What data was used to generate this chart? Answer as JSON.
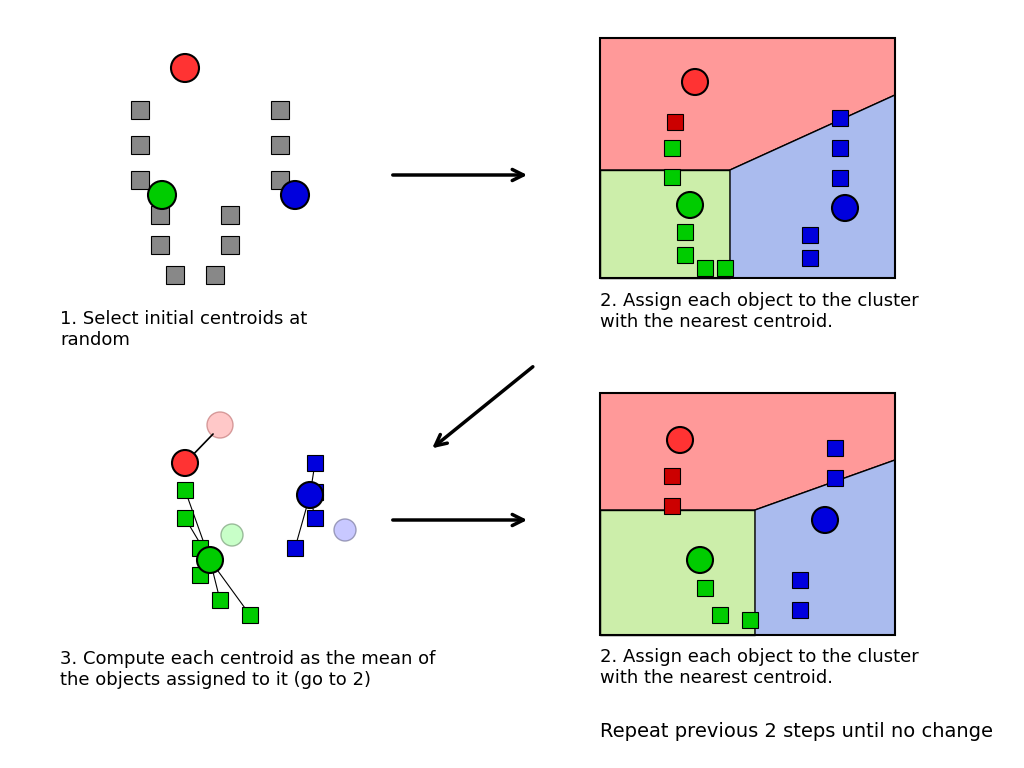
{
  "background_color": "#ffffff",
  "panel1_text": "1. Select initial centroids at\nrandom",
  "panel2_text": "2. Assign each object to the cluster\nwith the nearest centroid.",
  "panel3_text": "3. Compute each centroid as the mean of\nthe objects assigned to it (go to 2)",
  "panel4_text": "2. Assign each object to the cluster\nwith the nearest centroid.",
  "bottom_text": "Repeat previous 2 steps until no change",
  "red_color": "#ff3333",
  "green_color": "#00cc00",
  "blue_color": "#0000dd",
  "gray_color": "#888888",
  "red_region": "#ff9999",
  "green_region": "#cceeaa",
  "blue_region": "#aabbee",
  "dark_red": "#cc0000"
}
